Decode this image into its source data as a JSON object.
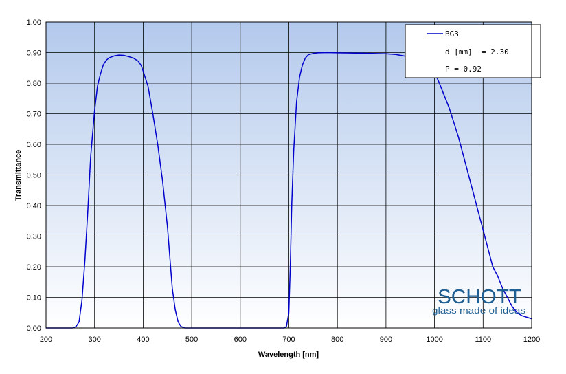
{
  "chart_data": {
    "type": "line",
    "xlabel": "Wavelength [nm]",
    "ylabel": "Transmittance",
    "xlim": [
      200,
      1200
    ],
    "ylim": [
      0,
      1
    ],
    "x_ticks": [
      200,
      300,
      400,
      500,
      600,
      700,
      800,
      900,
      1000,
      1100,
      1200
    ],
    "y_ticks": [
      "0.00",
      "0.10",
      "0.20",
      "0.30",
      "0.40",
      "0.50",
      "0.60",
      "0.70",
      "0.80",
      "0.90",
      "1.00"
    ],
    "grid": true,
    "legend_position": "top-right",
    "series": [
      {
        "name": "BG3",
        "color": "#0000cc",
        "x": [
          200,
          255,
          262,
          268,
          274,
          280,
          286,
          292,
          300,
          306,
          312,
          318,
          324,
          330,
          340,
          350,
          360,
          370,
          380,
          390,
          396,
          400,
          404,
          410,
          420,
          430,
          440,
          450,
          460,
          466,
          472,
          478,
          486,
          495,
          500,
          690,
          695,
          700,
          703,
          706,
          710,
          716,
          722,
          728,
          734,
          740,
          750,
          760,
          780,
          800,
          850,
          900,
          920,
          940,
          950,
          960,
          970,
          980,
          990,
          1000,
          1010,
          1020,
          1030,
          1040,
          1050,
          1060,
          1070,
          1080,
          1090,
          1100,
          1110,
          1120,
          1130,
          1140,
          1150,
          1160,
          1170,
          1180,
          1190,
          1200
        ],
        "y": [
          0,
          0,
          0.005,
          0.02,
          0.09,
          0.22,
          0.38,
          0.56,
          0.71,
          0.79,
          0.83,
          0.86,
          0.875,
          0.883,
          0.889,
          0.892,
          0.891,
          0.887,
          0.882,
          0.872,
          0.858,
          0.84,
          0.82,
          0.79,
          0.7,
          0.6,
          0.48,
          0.33,
          0.13,
          0.06,
          0.02,
          0.005,
          0,
          0,
          0,
          0,
          0.005,
          0.05,
          0.2,
          0.4,
          0.58,
          0.74,
          0.82,
          0.86,
          0.882,
          0.893,
          0.897,
          0.899,
          0.9,
          0.899,
          0.898,
          0.896,
          0.894,
          0.888,
          0.88,
          0.87,
          0.862,
          0.855,
          0.846,
          0.835,
          0.8,
          0.76,
          0.72,
          0.67,
          0.62,
          0.56,
          0.5,
          0.44,
          0.38,
          0.32,
          0.26,
          0.2,
          0.17,
          0.13,
          0.1,
          0.07,
          0.05,
          0.04,
          0.035,
          0.03
        ]
      }
    ],
    "legend": {
      "series_label": "BG3",
      "line2": "d [mm]  = 2.30",
      "line3": "P = 0.92"
    }
  },
  "logo": {
    "word": "SCHOTT",
    "tagline": "glass made of ideas"
  },
  "colors": {
    "plot_top": "#b3c9ec",
    "plot_bottom": "#ffffff",
    "grid": "#000000",
    "curve": "#0000cc",
    "logo": "#1f5f93"
  }
}
